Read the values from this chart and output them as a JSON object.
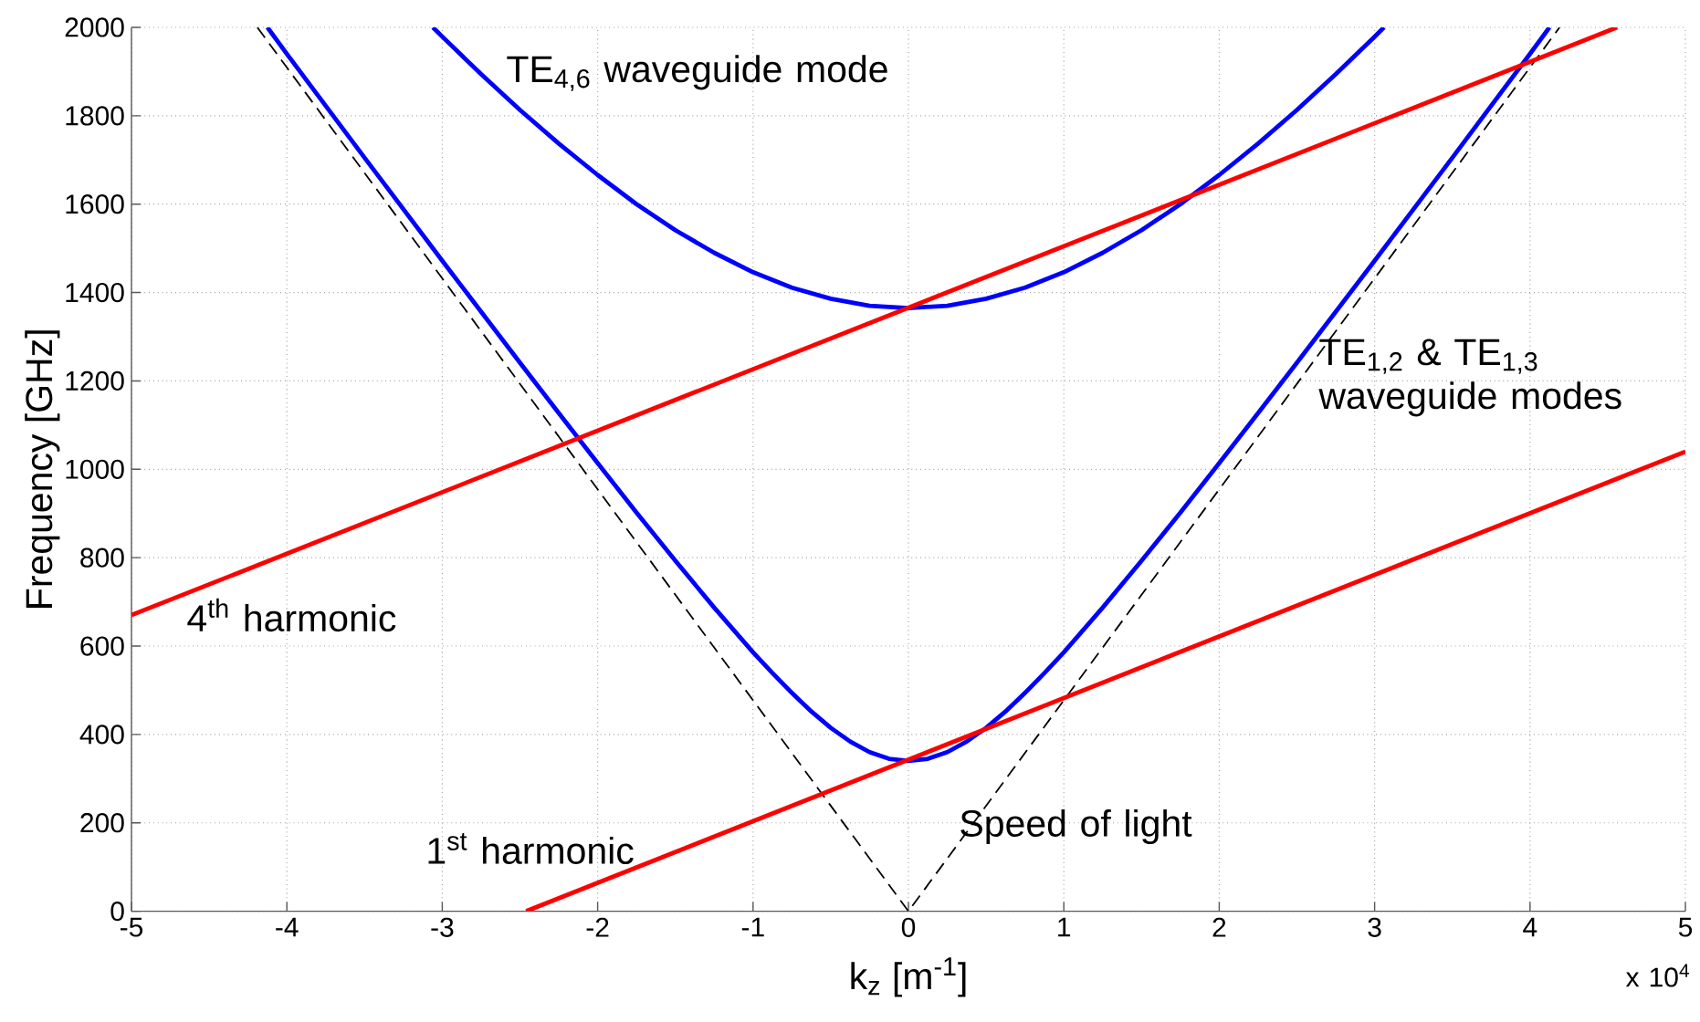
{
  "chart_data": {
    "type": "line",
    "xlabel": "k$_{z}$ [m$^{-1}$]",
    "ylabel": "Frequency [GHz]",
    "xlim": [
      -5,
      5
    ],
    "ylim": [
      0,
      2000
    ],
    "xticks": [
      -5,
      -4,
      -3,
      -2,
      -1,
      0,
      1,
      2,
      3,
      4,
      5
    ],
    "yticks": [
      0,
      200,
      400,
      600,
      800,
      1000,
      1200,
      1400,
      1600,
      1800,
      2000
    ],
    "grid": true,
    "series": [
      {
        "color": "#000000",
        "line_style": "dashed",
        "x": [
          -4.19,
          0,
          4.19
        ],
        "values": [
          2000,
          0,
          2000
        ]
      },
      {
        "color": "#0000ff",
        "x": [
          -4.125,
          -4,
          -3.5,
          -3,
          -2.5,
          -2.25,
          -2,
          -1.75,
          -1.5,
          -1.25,
          -1,
          -0.875,
          -0.75,
          -0.625,
          -0.5,
          -0.375,
          -0.25,
          -0.125,
          0,
          0.125,
          0.25,
          0.375,
          0.5,
          0.625,
          0.75,
          0.875,
          1,
          1.25,
          1.5,
          1.75,
          2,
          2.25,
          2.5,
          3,
          3.5,
          4,
          4.125
        ],
        "values": [
          2000,
          1940,
          1705,
          1472,
          1241,
          1127,
          1014,
          902,
          793,
          687,
          586,
          539,
          494,
          452,
          415,
          384,
          360,
          345,
          340,
          345,
          360,
          384,
          415,
          452,
          494,
          539,
          586,
          687,
          793,
          902,
          1014,
          1127,
          1241,
          1472,
          1705,
          1940,
          2000
        ]
      },
      {
        "color": "#0000ff",
        "x": [
          -3.06,
          -3,
          -2.75,
          -2.5,
          -2.25,
          -2,
          -1.75,
          -1.5,
          -1.25,
          -1,
          -0.75,
          -0.5,
          -0.25,
          0,
          0.25,
          0.5,
          0.75,
          1,
          1.25,
          1.5,
          1.75,
          2,
          2.25,
          2.5,
          2.75,
          3,
          3.06
        ],
        "values": [
          2000,
          1979,
          1894,
          1813,
          1737,
          1666,
          1600,
          1541,
          1490,
          1446,
          1411,
          1386,
          1370,
          1365,
          1370,
          1386,
          1411,
          1446,
          1490,
          1541,
          1600,
          1666,
          1737,
          1813,
          1894,
          1979,
          2000
        ]
      },
      {
        "color": "#ff0000",
        "x": [
          -5,
          4.56
        ],
        "values": [
          670,
          2000
        ]
      },
      {
        "color": "#ff0000",
        "x": [
          -2.46,
          5
        ],
        "values": [
          0,
          1040
        ]
      }
    ],
    "annotations": [
      "TE$_{4,6}$ waveguide mode",
      "TE$_{1,2}$ & TE$_{1,3}$ waveguide modes",
      "4$^{th}$ harmonic",
      "1$^{st}$ harmonic",
      "Speed of light",
      "x 10$^{4}$"
    ]
  }
}
